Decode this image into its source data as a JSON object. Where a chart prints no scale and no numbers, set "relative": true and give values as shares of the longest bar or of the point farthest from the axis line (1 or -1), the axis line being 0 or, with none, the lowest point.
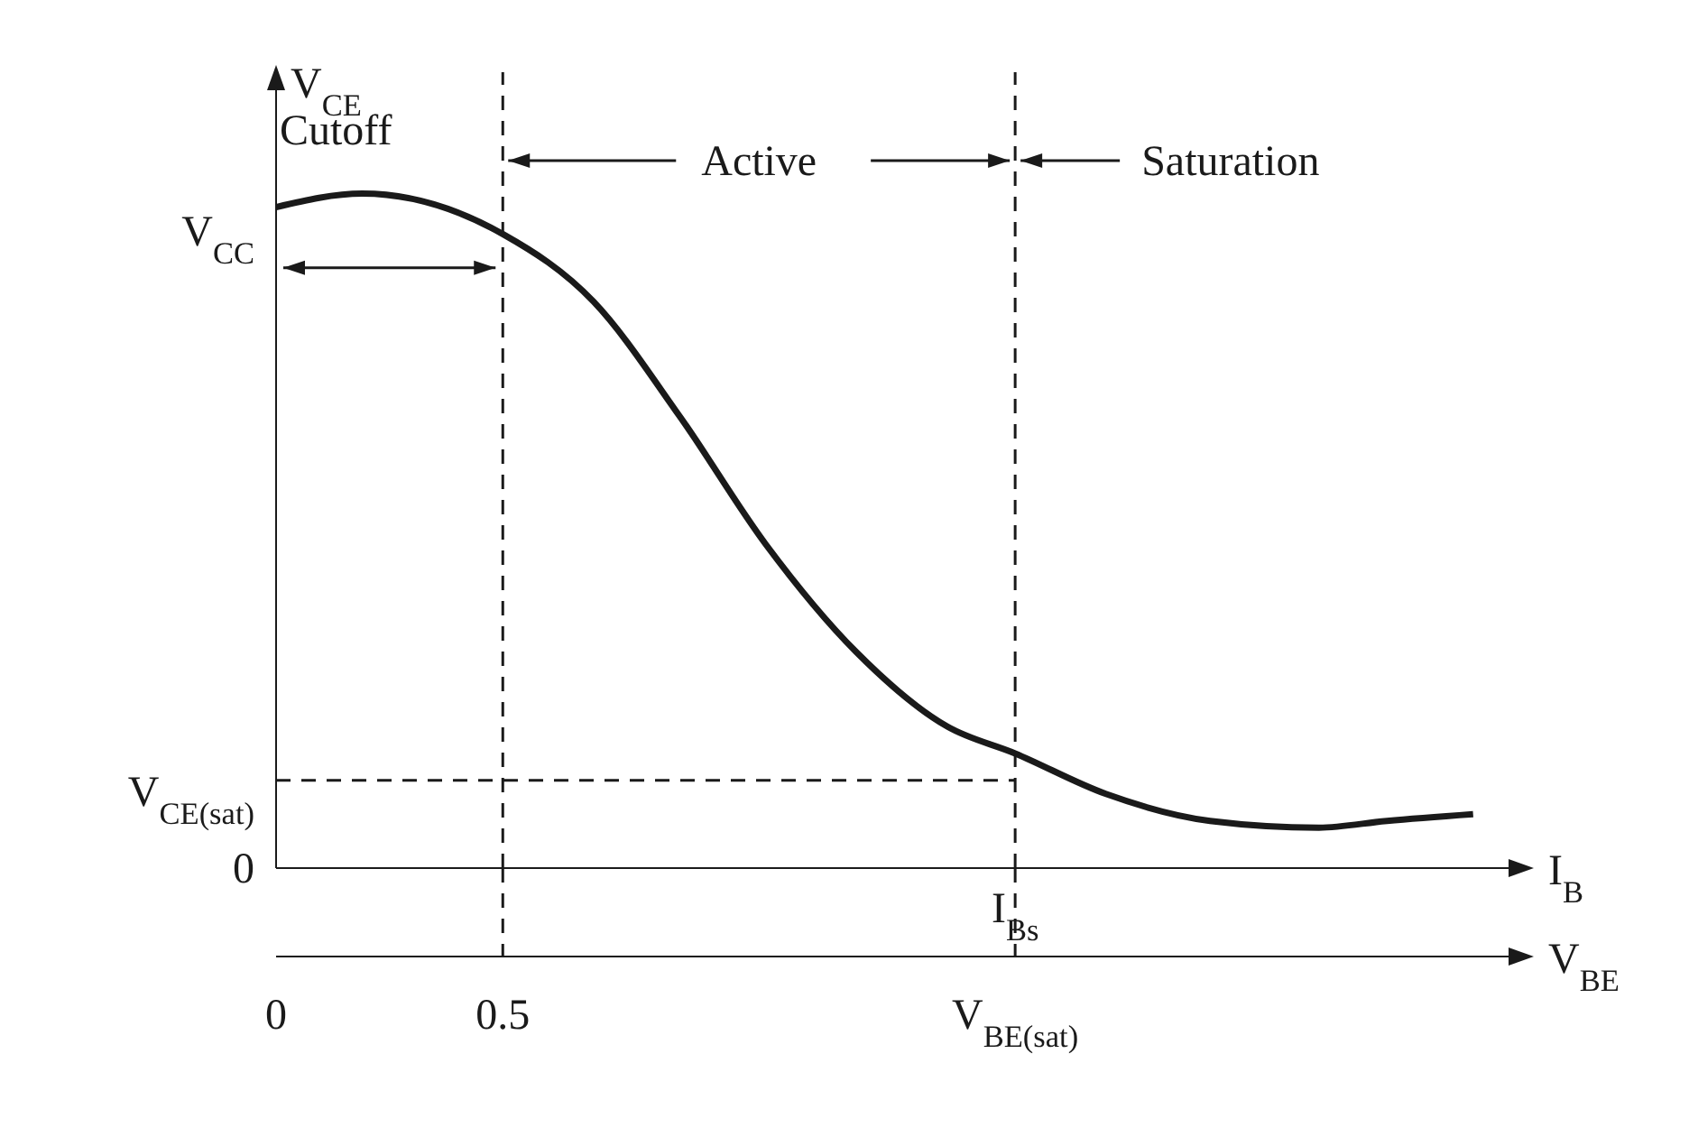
{
  "chart_data": {
    "type": "line",
    "relative": true,
    "ylabel": "V$_{CE}$",
    "xlabel": "V$_{BE}$",
    "x": [
      0,
      0.19,
      0.5,
      0.7,
      0.89,
      1.08,
      1.28,
      1.48,
      1.63,
      1.83,
      2.06,
      2.3,
      2.45,
      2.64
    ],
    "series": [
      {
        "color": "#1a1a1a",
        "values": [
          0.98,
          1,
          0.94,
          0.84,
          0.67,
          0.48,
          0.32,
          0.21,
          0.17,
          0.11,
          0.07,
          0.06,
          0.07,
          0.08
        ]
      }
    ],
    "xlim": [
      0,
      2.75
    ],
    "xticks": [
      0,
      0.5,
      {
        "value": 1.63,
        "label": "V$_{BE(sat)}$"
      }
    ],
    "ref_lines": [
      {
        "axis": "x",
        "value": 0.5,
        "line_style": "dashed",
        "color": "#1a1a1a"
      },
      {
        "axis": "x",
        "value": 1.63,
        "line_style": "dashed",
        "color": "#1a1a1a"
      },
      {
        "axis": "y",
        "value": 0.13,
        "line_style": "dashed",
        "color": "#1a1a1a"
      }
    ],
    "annotations": [
      "Cutoff",
      "Active",
      "Saturation",
      "I$_{B}$",
      {
        "text": "I$_{Bs}$",
        "x": 1.63
      },
      "V$_{CC}$",
      "V$_{CE(sat)}$",
      "0"
    ],
    "marker": "none",
    "line_style": "solid"
  }
}
